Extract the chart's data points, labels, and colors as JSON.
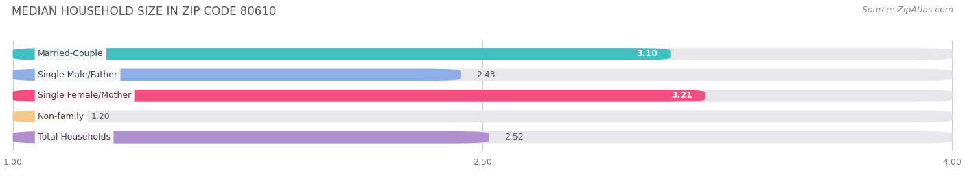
{
  "title": "MEDIAN HOUSEHOLD SIZE IN ZIP CODE 80610",
  "source": "Source: ZipAtlas.com",
  "categories": [
    "Married-Couple",
    "Single Male/Father",
    "Single Female/Mother",
    "Non-family",
    "Total Households"
  ],
  "values": [
    3.1,
    2.43,
    3.21,
    1.2,
    2.52
  ],
  "bar_colors": [
    "#40c0c0",
    "#8daee8",
    "#f05080",
    "#f5c88a",
    "#b090cc"
  ],
  "xmin": 1.0,
  "xmax": 4.0,
  "xticks": [
    1.0,
    2.5,
    4.0
  ],
  "title_fontsize": 12,
  "source_fontsize": 9,
  "bar_label_fontsize": 9,
  "category_fontsize": 9,
  "background_color": "#ffffff",
  "bar_background_color": "#e8e8ec"
}
